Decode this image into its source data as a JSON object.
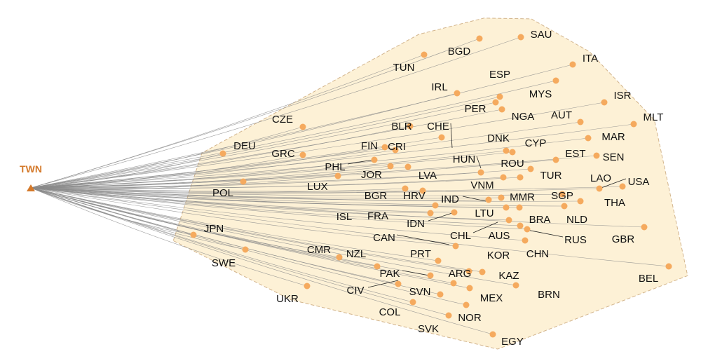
{
  "source": {
    "code": "TWN"
  },
  "colors": {
    "source": "#d4792a",
    "node": "#f5aa5e",
    "edge": "#8a8a8a",
    "hull_fill": "#fdf1d6",
    "hull_stroke": "#d2b48c",
    "leader": "#222222"
  },
  "nodes": [
    {
      "code": "SAU"
    },
    {
      "code": "BGD"
    },
    {
      "code": "TUN"
    },
    {
      "code": "ITA"
    },
    {
      "code": "ESP"
    },
    {
      "code": "IRL"
    },
    {
      "code": "MYS"
    },
    {
      "code": "ISR"
    },
    {
      "code": "PER"
    },
    {
      "code": "NGA"
    },
    {
      "code": "AUT"
    },
    {
      "code": "MLT"
    },
    {
      "code": "CZE"
    },
    {
      "code": "BLR"
    },
    {
      "code": "CHE"
    },
    {
      "code": "MAR"
    },
    {
      "code": "DNK"
    },
    {
      "code": "CYP"
    },
    {
      "code": "DEU"
    },
    {
      "code": "FIN"
    },
    {
      "code": "CRI"
    },
    {
      "code": "GRC"
    },
    {
      "code": "EST"
    },
    {
      "code": "SEN"
    },
    {
      "code": "HUN"
    },
    {
      "code": "ROU"
    },
    {
      "code": "PHL"
    },
    {
      "code": "JOR"
    },
    {
      "code": "LVA"
    },
    {
      "code": "TUR"
    },
    {
      "code": "LAO"
    },
    {
      "code": "USA"
    },
    {
      "code": "VNM"
    },
    {
      "code": "LUX"
    },
    {
      "code": "POL"
    },
    {
      "code": "BGR"
    },
    {
      "code": "HRV"
    },
    {
      "code": "IND"
    },
    {
      "code": "MMR"
    },
    {
      "code": "SGP"
    },
    {
      "code": "THA"
    },
    {
      "code": "ISL"
    },
    {
      "code": "FRA"
    },
    {
      "code": "LTU"
    },
    {
      "code": "BRA"
    },
    {
      "code": "NLD"
    },
    {
      "code": "IDN"
    },
    {
      "code": "CAN"
    },
    {
      "code": "CHL"
    },
    {
      "code": "AUS"
    },
    {
      "code": "RUS"
    },
    {
      "code": "GBR"
    },
    {
      "code": "JPN"
    },
    {
      "code": "CHN"
    },
    {
      "code": "CMR"
    },
    {
      "code": "PRT"
    },
    {
      "code": "NZL"
    },
    {
      "code": "KOR"
    },
    {
      "code": "SWE"
    },
    {
      "code": "ARG"
    },
    {
      "code": "PAK"
    },
    {
      "code": "KAZ"
    },
    {
      "code": "BEL"
    },
    {
      "code": "CIV"
    },
    {
      "code": "SVN"
    },
    {
      "code": "MEX"
    },
    {
      "code": "BRN"
    },
    {
      "code": "UKR"
    },
    {
      "code": "COL"
    },
    {
      "code": "NOR"
    },
    {
      "code": "SVK"
    },
    {
      "code": "EGY"
    }
  ]
}
